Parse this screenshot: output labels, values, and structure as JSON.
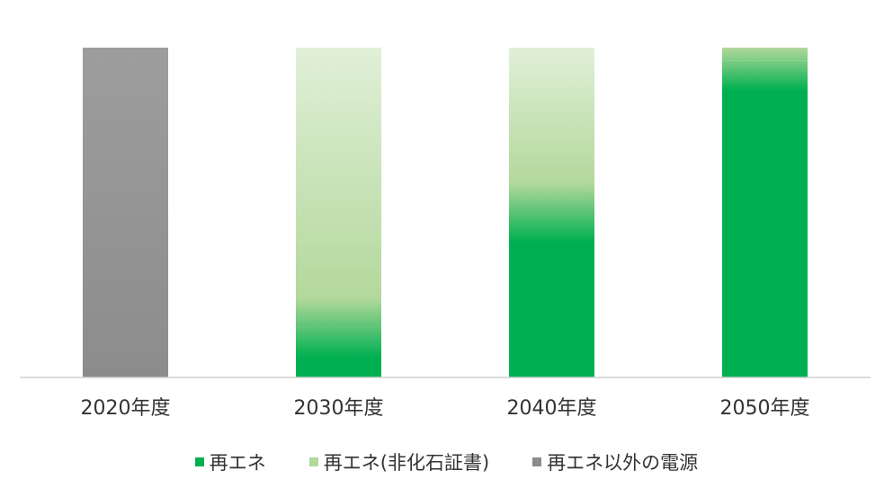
{
  "chart_data": {
    "type": "bar",
    "stacked": true,
    "categories": [
      "2020年度",
      "2030年度",
      "2040年度",
      "2050年度"
    ],
    "series": [
      {
        "name": "再エネ",
        "color": "#00b050",
        "values": [
          0,
          15,
          50,
          96
        ]
      },
      {
        "name": "再エネ(非化石証書)",
        "color": "#b3d89c",
        "values": [
          0,
          85,
          50,
          4
        ]
      },
      {
        "name": "再エネ以外の電源",
        "color": "#8c8c8c",
        "values": [
          100,
          0,
          0,
          0
        ]
      }
    ],
    "ylim": [
      0,
      100
    ],
    "grid": false,
    "legend": "bottom",
    "title": "",
    "xlabel": "",
    "ylabel": ""
  },
  "legend": {
    "items": [
      {
        "label": "再エネ",
        "color": "#00b050"
      },
      {
        "label": "再エネ(非化石証書)",
        "color": "#b3d89c"
      },
      {
        "label": "再エネ以外の電源",
        "color": "#8c8c8c"
      }
    ]
  }
}
